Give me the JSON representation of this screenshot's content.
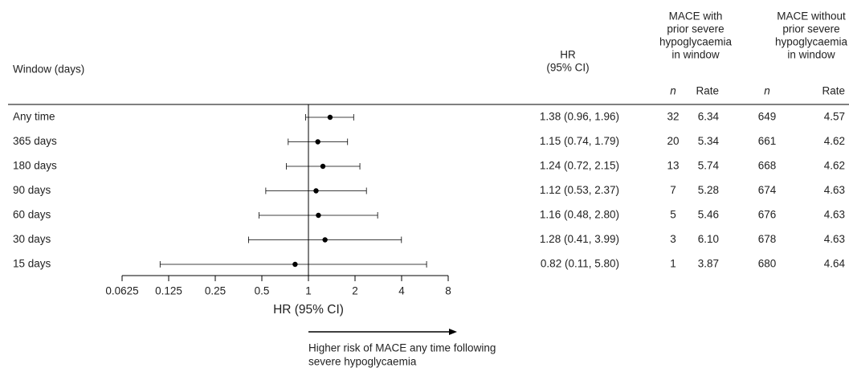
{
  "chart_data": {
    "type": "forest",
    "row_header": "Window (days)",
    "categories": [
      "Any time",
      "365 days",
      "180 days",
      "90 days",
      "60 days",
      "30 days",
      "15 days"
    ],
    "values": [
      1.38,
      1.15,
      1.24,
      1.12,
      1.16,
      1.28,
      0.82
    ],
    "lower": [
      0.96,
      0.74,
      0.72,
      0.53,
      0.48,
      0.41,
      0.11
    ],
    "upper": [
      1.96,
      1.79,
      2.15,
      2.37,
      2.8,
      3.99,
      5.8
    ],
    "value_labels": [
      "1.38 (0.96, 1.96)",
      "1.15 (0.74, 1.79)",
      "1.24 (0.72, 2.15)",
      "1.12 (0.53, 2.37)",
      "1.16 (0.48, 2.80)",
      "1.28 (0.41, 3.99)",
      "0.82 (0.11, 5.80)"
    ],
    "value_header": [
      "HR",
      "(95% CI)"
    ],
    "x_label": "HR (95% CI)",
    "log_scale": true,
    "xlim": [
      0.0625,
      8
    ],
    "xticks": [
      0.0625,
      0.125,
      0.25,
      0.5,
      1,
      2,
      4,
      8
    ],
    "reference": 1,
    "color": "#000000",
    "annotation": [
      "Higher risk of MACE any time following",
      "severe hypoglycaemia"
    ],
    "groups": [
      {
        "header": [
          "MACE with",
          "prior severe",
          "hypoglycaemia",
          "in window"
        ],
        "n_label": "n",
        "rate_label": "Rate",
        "n": [
          32,
          20,
          13,
          7,
          5,
          3,
          1
        ],
        "rate": [
          "6.34",
          "5.34",
          "5.74",
          "5.28",
          "5.46",
          "6.10",
          "3.87"
        ]
      },
      {
        "header": [
          "MACE without",
          "prior severe",
          "hypoglycaemia",
          "in window"
        ],
        "n_label": "n",
        "rate_label": "Rate",
        "n": [
          649,
          661,
          668,
          674,
          676,
          678,
          680
        ],
        "rate": [
          "4.57",
          "4.62",
          "4.62",
          "4.63",
          "4.63",
          "4.63",
          "4.64"
        ]
      }
    ]
  }
}
